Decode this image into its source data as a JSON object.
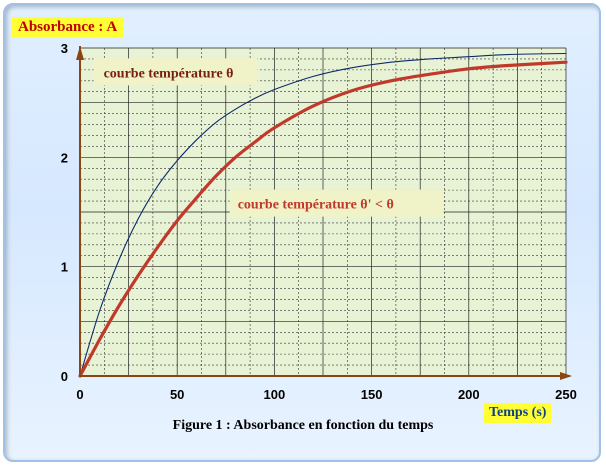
{
  "chart_data": {
    "type": "line",
    "title": "",
    "ylabel": "Absorbance : A",
    "xlabel": "Temps (s)",
    "caption": "Figure 1 : Absorbance en fonction du temps",
    "xlim": [
      0,
      250
    ],
    "ylim": [
      0,
      3
    ],
    "x_ticks": [
      "0",
      "50",
      "100",
      "150",
      "200",
      "250"
    ],
    "y_ticks": [
      "0",
      "1",
      "2",
      "3"
    ],
    "grid": true,
    "series": [
      {
        "name": "courbe température θ",
        "color": "#0d2a6b",
        "x": [
          0,
          10,
          20,
          30,
          40,
          50,
          60,
          70,
          80,
          90,
          100,
          120,
          140,
          160,
          180,
          200,
          220,
          250
        ],
        "y": [
          0,
          0.59,
          1.06,
          1.44,
          1.74,
          1.97,
          2.16,
          2.32,
          2.44,
          2.54,
          2.62,
          2.74,
          2.82,
          2.87,
          2.9,
          2.92,
          2.94,
          2.95
        ]
      },
      {
        "name": "courbe température θ' < θ",
        "color": "#c0392b",
        "x": [
          0,
          10,
          20,
          30,
          40,
          50,
          60,
          70,
          80,
          90,
          100,
          120,
          140,
          160,
          180,
          200,
          220,
          250
        ],
        "y": [
          0,
          0.33,
          0.64,
          0.92,
          1.18,
          1.42,
          1.63,
          1.83,
          2.0,
          2.14,
          2.27,
          2.47,
          2.61,
          2.7,
          2.76,
          2.81,
          2.84,
          2.87
        ]
      }
    ]
  }
}
